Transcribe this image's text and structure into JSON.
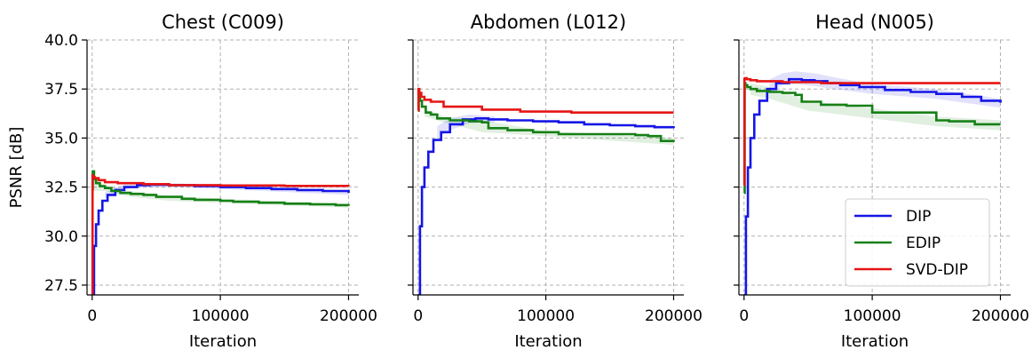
{
  "chart_data": [
    {
      "type": "line",
      "title": "Chest (C009)",
      "xlabel": "Iteration",
      "ylabel": "PSNR [dB]",
      "xlim": [
        -4000,
        208000
      ],
      "ylim": [
        27.0,
        40.0
      ],
      "xticks": [
        "0",
        "100000",
        "200000"
      ],
      "xtick_values": [
        0,
        100000,
        200000
      ],
      "yticks": [
        "27.5",
        "30.0",
        "32.5",
        "35.0",
        "37.5",
        "40.0"
      ],
      "ytick_values": [
        27.5,
        30.0,
        32.5,
        35.0,
        37.5,
        40.0
      ],
      "grid": true,
      "series": [
        {
          "name": "DIP",
          "color": "#1515e6",
          "x": [
            0,
            1500,
            3000,
            5000,
            8000,
            12000,
            18000,
            25000,
            35000,
            45000,
            60000,
            80000,
            100000,
            120000,
            140000,
            160000,
            180000,
            200000
          ],
          "y": [
            27.0,
            29.5,
            30.6,
            31.3,
            31.8,
            32.1,
            32.35,
            32.5,
            32.6,
            32.62,
            32.6,
            32.55,
            32.5,
            32.45,
            32.4,
            32.35,
            32.3,
            32.2
          ]
        },
        {
          "name": "EDIP",
          "color": "#158015",
          "x": [
            0,
            500,
            1500,
            3000,
            6000,
            10000,
            15000,
            22000,
            30000,
            40000,
            50000,
            70000,
            80000,
            100000,
            110000,
            130000,
            150000,
            170000,
            190000,
            200000
          ],
          "y": [
            32.4,
            33.3,
            32.9,
            32.7,
            32.55,
            32.45,
            32.3,
            32.2,
            32.15,
            32.1,
            32.0,
            31.9,
            31.85,
            31.8,
            31.75,
            31.7,
            31.65,
            31.62,
            31.58,
            31.55
          ]
        },
        {
          "name": "SVD-DIP",
          "color": "#e61515",
          "x": [
            0,
            300,
            800,
            2000,
            5000,
            10000,
            20000,
            40000,
            60000,
            100000,
            150000,
            200000
          ],
          "y": [
            27.0,
            33.1,
            33.0,
            32.95,
            32.85,
            32.75,
            32.7,
            32.65,
            32.6,
            32.58,
            32.56,
            32.55
          ]
        }
      ],
      "shading": [
        {
          "series": "EDIP",
          "color": "#158015",
          "x": [
            0,
            10000,
            30000,
            60000,
            100000,
            200000
          ],
          "lo": [
            32.3,
            32.3,
            32.0,
            31.8,
            31.7,
            31.45
          ],
          "hi": [
            32.9,
            32.6,
            32.3,
            32.05,
            31.9,
            31.65
          ]
        },
        {
          "series": "DIP",
          "color": "#1515e6",
          "x": [
            10000,
            30000,
            60000,
            100000,
            200000
          ],
          "lo": [
            31.95,
            32.45,
            32.5,
            32.4,
            32.1
          ],
          "hi": [
            32.25,
            32.75,
            32.7,
            32.6,
            32.3
          ]
        }
      ]
    },
    {
      "type": "line",
      "title": "Abdomen (L012)",
      "xlabel": "Iteration",
      "xlim": [
        -4000,
        208000
      ],
      "ylim": [
        27.0,
        40.0
      ],
      "xticks": [
        "0",
        "100000",
        "200000"
      ],
      "xtick_values": [
        0,
        100000,
        200000
      ],
      "ytick_values": [
        27.5,
        30.0,
        32.5,
        35.0,
        37.5,
        40.0
      ],
      "grid": true,
      "series": [
        {
          "name": "DIP",
          "color": "#1515e6",
          "x": [
            0,
            1500,
            3000,
            5000,
            8000,
            12000,
            18000,
            25000,
            35000,
            45000,
            55000,
            70000,
            90000,
            110000,
            130000,
            150000,
            170000,
            185000,
            200000
          ],
          "y": [
            27.0,
            30.5,
            32.5,
            33.5,
            34.3,
            34.9,
            35.3,
            35.7,
            35.95,
            36.0,
            35.95,
            35.9,
            35.85,
            35.8,
            35.7,
            35.65,
            35.6,
            35.55,
            35.5
          ]
        },
        {
          "name": "EDIP",
          "color": "#158015",
          "x": [
            0,
            500,
            1500,
            3000,
            6000,
            10000,
            15000,
            25000,
            40000,
            50000,
            55000,
            70000,
            90000,
            110000,
            130000,
            150000,
            170000,
            180000,
            190000,
            200000
          ],
          "y": [
            36.4,
            37.2,
            36.9,
            36.6,
            36.3,
            36.2,
            36.0,
            35.9,
            35.85,
            35.8,
            35.5,
            35.4,
            35.3,
            35.2,
            35.2,
            35.2,
            35.15,
            35.1,
            34.85,
            34.8
          ]
        },
        {
          "name": "SVD-DIP",
          "color": "#e61515",
          "x": [
            0,
            300,
            1000,
            2500,
            5000,
            10000,
            20000,
            50000,
            80000,
            120000,
            200000
          ],
          "y": [
            36.4,
            37.5,
            37.3,
            37.1,
            36.95,
            36.85,
            36.6,
            36.45,
            36.35,
            36.3,
            36.3
          ]
        }
      ],
      "shading": [
        {
          "series": "DIP",
          "color": "#1515e6",
          "x": [
            15000,
            25000,
            40000,
            60000
          ],
          "lo": [
            35.0,
            35.4,
            35.75,
            35.8
          ],
          "hi": [
            35.6,
            36.0,
            36.2,
            36.1
          ]
        },
        {
          "series": "EDIP",
          "color": "#158015",
          "x": [
            5000,
            20000,
            50000,
            100000,
            200000
          ],
          "lo": [
            36.1,
            35.8,
            35.3,
            35.1,
            34.65
          ],
          "hi": [
            36.5,
            36.1,
            35.9,
            35.35,
            35.0
          ]
        }
      ]
    },
    {
      "type": "line",
      "title": "Head (N005)",
      "xlabel": "Iteration",
      "xlim": [
        -4000,
        208000
      ],
      "ylim": [
        27.0,
        40.0
      ],
      "xticks": [
        "0",
        "100000",
        "200000"
      ],
      "xtick_values": [
        0,
        100000,
        200000
      ],
      "ytick_values": [
        27.5,
        30.0,
        32.5,
        35.0,
        37.5,
        40.0
      ],
      "grid": true,
      "legend": "bottom-right",
      "series": [
        {
          "name": "DIP",
          "color": "#1515e6",
          "x": [
            0,
            1500,
            3000,
            5000,
            8000,
            12000,
            18000,
            25000,
            35000,
            45000,
            55000,
            65000,
            75000,
            90000,
            110000,
            130000,
            150000,
            170000,
            185000,
            200000
          ],
          "y": [
            27.0,
            31.0,
            33.5,
            35.0,
            36.2,
            36.9,
            37.5,
            37.8,
            38.0,
            37.95,
            37.9,
            37.8,
            37.7,
            37.6,
            37.45,
            37.35,
            37.25,
            37.1,
            36.9,
            36.8
          ]
        },
        {
          "name": "EDIP",
          "color": "#158015",
          "x": [
            0,
            500,
            1000,
            2500,
            5000,
            10000,
            20000,
            30000,
            40000,
            45000,
            60000,
            80000,
            100000,
            110000,
            130000,
            150000,
            160000,
            180000,
            200000
          ],
          "y": [
            32.2,
            37.8,
            37.7,
            37.6,
            37.5,
            37.4,
            37.35,
            37.3,
            37.2,
            36.85,
            36.7,
            36.65,
            36.3,
            36.3,
            36.3,
            35.9,
            35.85,
            35.7,
            35.7
          ]
        },
        {
          "name": "SVD-DIP",
          "color": "#e61515",
          "x": [
            0,
            300,
            800,
            2000,
            5000,
            10000,
            30000,
            60000,
            100000,
            150000,
            200000
          ],
          "y": [
            32.6,
            38.0,
            38.05,
            38.0,
            37.95,
            37.9,
            37.85,
            37.8,
            37.8,
            37.8,
            37.8
          ]
        }
      ],
      "shading": [
        {
          "series": "DIP",
          "color": "#1515e6",
          "x": [
            20000,
            30000,
            40000,
            55000,
            70000,
            100000,
            150000,
            200000
          ],
          "lo": [
            37.3,
            37.7,
            37.75,
            37.65,
            37.5,
            37.25,
            37.0,
            36.55
          ],
          "hi": [
            38.0,
            38.3,
            38.4,
            38.3,
            38.1,
            37.75,
            37.5,
            37.0
          ]
        },
        {
          "series": "EDIP",
          "color": "#158015",
          "x": [
            5000,
            20000,
            50000,
            100000,
            150000,
            200000
          ],
          "lo": [
            37.2,
            37.0,
            36.4,
            36.0,
            35.6,
            35.4
          ],
          "hi": [
            37.8,
            37.6,
            36.9,
            36.5,
            36.1,
            35.9
          ]
        }
      ]
    }
  ],
  "legend": {
    "entries": [
      {
        "label": "DIP",
        "color": "#1515e6"
      },
      {
        "label": "EDIP",
        "color": "#158015"
      },
      {
        "label": "SVD-DIP",
        "color": "#e61515"
      }
    ]
  }
}
